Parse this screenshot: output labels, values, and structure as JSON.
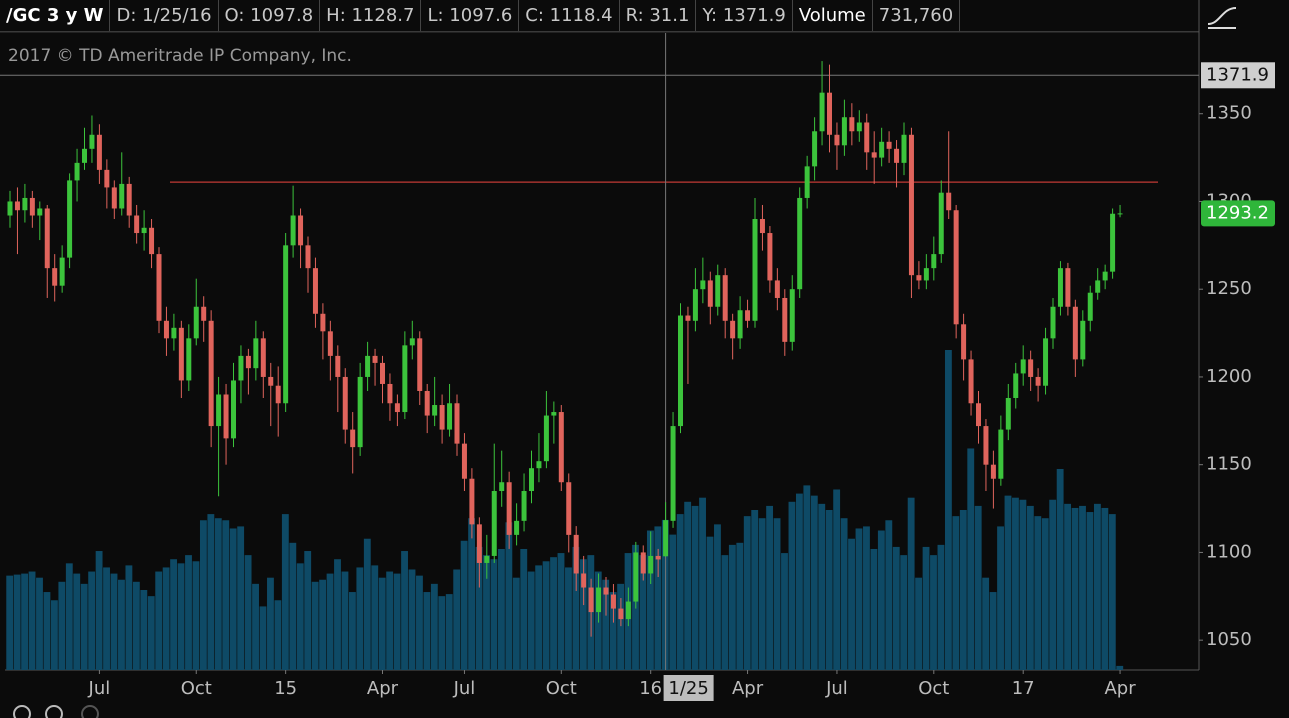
{
  "header": {
    "symbol": "/GC 3 y W",
    "items": [
      "D: 1/25/16",
      "O: 1097.8",
      "H: 1128.7",
      "L: 1097.6",
      "C: 1118.4",
      "R: 31.1",
      "Y: 1371.9"
    ],
    "volume_label": "Volume",
    "volume": "731,760"
  },
  "chart_data": {
    "type": "candlestick",
    "subtitle": "2017 © TD Ameritrade IP Company, Inc.",
    "up_color": "#3cc43c",
    "down_color": "#e0645c",
    "volume_color": "#0e4a66",
    "ylim": [
      1033,
      1396
    ],
    "yticks": [
      1050,
      1100,
      1150,
      1200,
      1250,
      1300,
      1350
    ],
    "xticks": [
      {
        "value": 12,
        "label": "Jul"
      },
      {
        "value": 25,
        "label": "Oct"
      },
      {
        "value": 37,
        "label": "15"
      },
      {
        "value": 50,
        "label": "Apr"
      },
      {
        "value": 61,
        "label": "Jul"
      },
      {
        "value": 74,
        "label": "Oct"
      },
      {
        "value": 86,
        "label": "16"
      },
      {
        "value": 99,
        "label": "Apr"
      },
      {
        "value": 111,
        "label": "Jul"
      },
      {
        "value": 124,
        "label": "Oct"
      },
      {
        "value": 136,
        "label": "17"
      },
      {
        "value": 149,
        "label": "Apr"
      }
    ],
    "cursor": {
      "index": 88,
      "label": "1/25",
      "price": 1371.9
    },
    "hline": 1311,
    "candles": [
      [
        1292,
        1306,
        1285,
        1300
      ],
      [
        1300,
        1308,
        1270,
        1295
      ],
      [
        1295,
        1310,
        1288,
        1302
      ],
      [
        1302,
        1306,
        1285,
        1292
      ],
      [
        1292,
        1300,
        1278,
        1296
      ],
      [
        1296,
        1298,
        1245,
        1262
      ],
      [
        1262,
        1270,
        1243,
        1252
      ],
      [
        1252,
        1275,
        1248,
        1268
      ],
      [
        1268,
        1316,
        1262,
        1312
      ],
      [
        1312,
        1330,
        1300,
        1322
      ],
      [
        1322,
        1342,
        1318,
        1330
      ],
      [
        1330,
        1349,
        1322,
        1338
      ],
      [
        1338,
        1344,
        1310,
        1318
      ],
      [
        1318,
        1324,
        1296,
        1308
      ],
      [
        1308,
        1312,
        1290,
        1296
      ],
      [
        1296,
        1328,
        1292,
        1310
      ],
      [
        1310,
        1314,
        1285,
        1292
      ],
      [
        1292,
        1298,
        1276,
        1282
      ],
      [
        1282,
        1295,
        1272,
        1285
      ],
      [
        1285,
        1290,
        1262,
        1270
      ],
      [
        1270,
        1274,
        1225,
        1232
      ],
      [
        1232,
        1240,
        1212,
        1222
      ],
      [
        1222,
        1236,
        1215,
        1228
      ],
      [
        1228,
        1232,
        1188,
        1198
      ],
      [
        1198,
        1230,
        1192,
        1222
      ],
      [
        1222,
        1256,
        1218,
        1240
      ],
      [
        1240,
        1246,
        1220,
        1232
      ],
      [
        1232,
        1238,
        1160,
        1172
      ],
      [
        1172,
        1200,
        1132,
        1190
      ],
      [
        1190,
        1196,
        1150,
        1165
      ],
      [
        1165,
        1208,
        1160,
        1198
      ],
      [
        1198,
        1218,
        1185,
        1212
      ],
      [
        1212,
        1216,
        1190,
        1205
      ],
      [
        1205,
        1232,
        1198,
        1222
      ],
      [
        1222,
        1226,
        1188,
        1200
      ],
      [
        1200,
        1208,
        1172,
        1195
      ],
      [
        1195,
        1206,
        1166,
        1185
      ],
      [
        1185,
        1282,
        1180,
        1275
      ],
      [
        1275,
        1309,
        1268,
        1292
      ],
      [
        1292,
        1296,
        1262,
        1275
      ],
      [
        1275,
        1280,
        1248,
        1262
      ],
      [
        1262,
        1268,
        1228,
        1236
      ],
      [
        1236,
        1242,
        1210,
        1226
      ],
      [
        1226,
        1232,
        1198,
        1212
      ],
      [
        1212,
        1218,
        1180,
        1200
      ],
      [
        1200,
        1205,
        1162,
        1170
      ],
      [
        1170,
        1180,
        1145,
        1160
      ],
      [
        1160,
        1208,
        1155,
        1200
      ],
      [
        1200,
        1220,
        1192,
        1212
      ],
      [
        1212,
        1216,
        1195,
        1208
      ],
      [
        1208,
        1212,
        1185,
        1196
      ],
      [
        1196,
        1202,
        1175,
        1185
      ],
      [
        1185,
        1190,
        1172,
        1180
      ],
      [
        1180,
        1226,
        1176,
        1218
      ],
      [
        1218,
        1232,
        1210,
        1222
      ],
      [
        1222,
        1226,
        1184,
        1192
      ],
      [
        1192,
        1196,
        1168,
        1178
      ],
      [
        1178,
        1200,
        1172,
        1184
      ],
      [
        1184,
        1190,
        1162,
        1170
      ],
      [
        1170,
        1196,
        1166,
        1185
      ],
      [
        1185,
        1190,
        1155,
        1162
      ],
      [
        1162,
        1168,
        1135,
        1142
      ],
      [
        1142,
        1148,
        1108,
        1116
      ],
      [
        1116,
        1120,
        1080,
        1094
      ],
      [
        1094,
        1110,
        1085,
        1098
      ],
      [
        1098,
        1162,
        1094,
        1135
      ],
      [
        1135,
        1158,
        1126,
        1140
      ],
      [
        1140,
        1146,
        1102,
        1110
      ],
      [
        1110,
        1128,
        1104,
        1118
      ],
      [
        1118,
        1145,
        1112,
        1135
      ],
      [
        1135,
        1158,
        1128,
        1148
      ],
      [
        1148,
        1168,
        1140,
        1152
      ],
      [
        1152,
        1192,
        1148,
        1178
      ],
      [
        1178,
        1186,
        1162,
        1180
      ],
      [
        1180,
        1184,
        1135,
        1140
      ],
      [
        1140,
        1145,
        1100,
        1110
      ],
      [
        1110,
        1115,
        1078,
        1088
      ],
      [
        1088,
        1098,
        1070,
        1080
      ],
      [
        1080,
        1085,
        1052,
        1066
      ],
      [
        1066,
        1088,
        1060,
        1080
      ],
      [
        1080,
        1086,
        1064,
        1076
      ],
      [
        1076,
        1082,
        1060,
        1068
      ],
      [
        1068,
        1074,
        1058,
        1062
      ],
      [
        1062,
        1080,
        1058,
        1072
      ],
      [
        1072,
        1106,
        1068,
        1100
      ],
      [
        1100,
        1104,
        1084,
        1088
      ],
      [
        1088,
        1112,
        1082,
        1098
      ],
      [
        1098,
        1102,
        1086,
        1096
      ],
      [
        1097.8,
        1128.7,
        1097.6,
        1118.4
      ],
      [
        1118,
        1180,
        1114,
        1172
      ],
      [
        1172,
        1242,
        1168,
        1235
      ],
      [
        1235,
        1240,
        1196,
        1232
      ],
      [
        1232,
        1262,
        1226,
        1250
      ],
      [
        1250,
        1268,
        1242,
        1255
      ],
      [
        1255,
        1260,
        1230,
        1240
      ],
      [
        1240,
        1264,
        1235,
        1258
      ],
      [
        1258,
        1262,
        1222,
        1232
      ],
      [
        1232,
        1236,
        1210,
        1222
      ],
      [
        1222,
        1246,
        1216,
        1238
      ],
      [
        1238,
        1244,
        1228,
        1232
      ],
      [
        1232,
        1302,
        1228,
        1290
      ],
      [
        1290,
        1298,
        1272,
        1282
      ],
      [
        1282,
        1286,
        1248,
        1255
      ],
      [
        1255,
        1262,
        1238,
        1245
      ],
      [
        1245,
        1250,
        1212,
        1220
      ],
      [
        1220,
        1258,
        1215,
        1250
      ],
      [
        1250,
        1308,
        1245,
        1302
      ],
      [
        1302,
        1326,
        1296,
        1320
      ],
      [
        1320,
        1348,
        1312,
        1340
      ],
      [
        1340,
        1380,
        1332,
        1362
      ],
      [
        1362,
        1378,
        1328,
        1338
      ],
      [
        1338,
        1345,
        1318,
        1332
      ],
      [
        1332,
        1358,
        1326,
        1348
      ],
      [
        1348,
        1356,
        1332,
        1340
      ],
      [
        1340,
        1352,
        1334,
        1345
      ],
      [
        1345,
        1350,
        1318,
        1328
      ],
      [
        1328,
        1340,
        1310,
        1325
      ],
      [
        1325,
        1342,
        1320,
        1334
      ],
      [
        1334,
        1340,
        1322,
        1330
      ],
      [
        1330,
        1335,
        1308,
        1322
      ],
      [
        1322,
        1345,
        1315,
        1338
      ],
      [
        1338,
        1342,
        1245,
        1258
      ],
      [
        1258,
        1266,
        1250,
        1255
      ],
      [
        1255,
        1270,
        1250,
        1262
      ],
      [
        1262,
        1280,
        1255,
        1270
      ],
      [
        1270,
        1312,
        1265,
        1305
      ],
      [
        1305,
        1340,
        1290,
        1295
      ],
      [
        1295,
        1298,
        1222,
        1230
      ],
      [
        1230,
        1236,
        1198,
        1210
      ],
      [
        1210,
        1215,
        1178,
        1185
      ],
      [
        1185,
        1192,
        1162,
        1172
      ],
      [
        1172,
        1176,
        1135,
        1150
      ],
      [
        1150,
        1158,
        1125,
        1142
      ],
      [
        1142,
        1178,
        1138,
        1170
      ],
      [
        1170,
        1196,
        1164,
        1188
      ],
      [
        1188,
        1208,
        1182,
        1202
      ],
      [
        1202,
        1218,
        1195,
        1210
      ],
      [
        1210,
        1215,
        1192,
        1200
      ],
      [
        1200,
        1205,
        1186,
        1195
      ],
      [
        1195,
        1228,
        1190,
        1222
      ],
      [
        1222,
        1245,
        1216,
        1240
      ],
      [
        1240,
        1266,
        1235,
        1262
      ],
      [
        1262,
        1265,
        1235,
        1240
      ],
      [
        1240,
        1244,
        1200,
        1210
      ],
      [
        1210,
        1238,
        1206,
        1232
      ],
      [
        1232,
        1252,
        1226,
        1248
      ],
      [
        1248,
        1262,
        1244,
        1255
      ],
      [
        1255,
        1264,
        1250,
        1260
      ],
      [
        1260,
        1296,
        1256,
        1293
      ],
      [
        1293,
        1298,
        1291,
        1293.2
      ]
    ],
    "volumes": [
      460000,
      465000,
      470000,
      480000,
      450000,
      380000,
      340000,
      430000,
      520000,
      470000,
      420000,
      480000,
      580000,
      500000,
      470000,
      440000,
      510000,
      430000,
      390000,
      360000,
      480000,
      500000,
      540000,
      520000,
      560000,
      530000,
      730000,
      760000,
      740000,
      730000,
      690000,
      700000,
      560000,
      420000,
      310000,
      450000,
      340000,
      760000,
      620000,
      520000,
      580000,
      430000,
      440000,
      470000,
      540000,
      480000,
      380000,
      500000,
      640000,
      510000,
      450000,
      480000,
      470000,
      580000,
      490000,
      460000,
      380000,
      420000,
      360000,
      370000,
      490000,
      630000,
      740000,
      600000,
      560000,
      540000,
      590000,
      720000,
      450000,
      590000,
      480000,
      510000,
      530000,
      550000,
      570000,
      500000,
      600000,
      540000,
      560000,
      480000,
      440000,
      380000,
      420000,
      570000,
      610000,
      560000,
      680000,
      700000,
      731760,
      660000,
      760000,
      820000,
      800000,
      840000,
      650000,
      710000,
      560000,
      610000,
      620000,
      750000,
      780000,
      740000,
      800000,
      740000,
      570000,
      820000,
      860000,
      900000,
      850000,
      810000,
      780000,
      880000,
      740000,
      640000,
      690000,
      700000,
      590000,
      680000,
      730000,
      600000,
      560000,
      840000,
      450000,
      600000,
      560000,
      610000,
      1560000,
      750000,
      780000,
      1080000,
      800000,
      450000,
      380000,
      700000,
      850000,
      840000,
      830000,
      800000,
      750000,
      740000,
      830000,
      980000,
      810000,
      790000,
      800000,
      770000,
      810000,
      790000,
      760000,
      20000
    ]
  }
}
